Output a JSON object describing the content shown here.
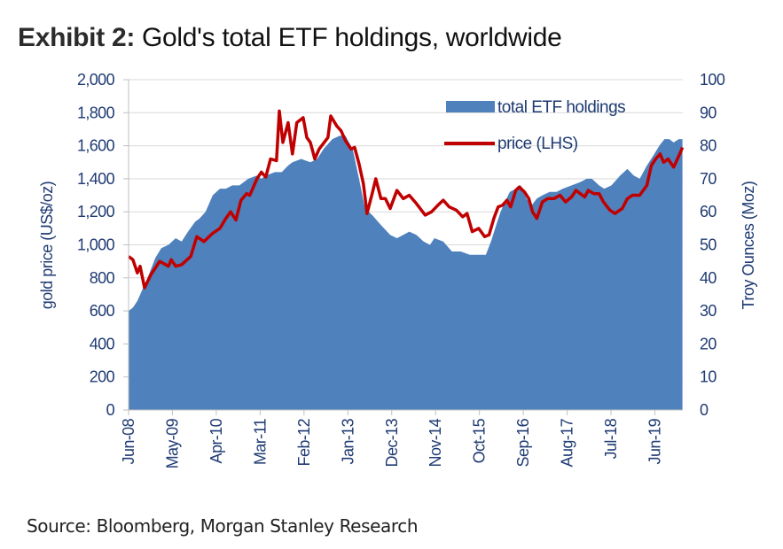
{
  "header": {
    "exhibit_label": "Exhibit 2:",
    "title": "Gold's total ETF holdings, worldwide"
  },
  "footer": {
    "source": "Source: Bloomberg, Morgan Stanley Research"
  },
  "colors": {
    "holdings_fill": "#4f81bd",
    "price_line": "#c00000",
    "axis_text": "#1f3b73",
    "gridline": "#d9d9d9"
  },
  "chart_data": {
    "type": "area",
    "title": "Gold's total ETF holdings, worldwide",
    "xlabel": "",
    "ylabel": "gold price (US$/oz)",
    "y2label": "Troy Ounces (Moz)",
    "ylim": [
      0,
      2000
    ],
    "y2lim": [
      0,
      100
    ],
    "yticks": [
      "0",
      "200",
      "400",
      "600",
      "800",
      "1,000",
      "1,200",
      "1,400",
      "1,600",
      "1,800",
      "2,000"
    ],
    "y2ticks": [
      "0",
      "10",
      "20",
      "30",
      "40",
      "50",
      "60",
      "70",
      "80",
      "90",
      "100"
    ],
    "x_unit": "months since Jun-08",
    "x_range": [
      0,
      139
    ],
    "xticks": [
      {
        "label": "Jun-08",
        "month": 0
      },
      {
        "label": "May-09",
        "month": 11
      },
      {
        "label": "Apr-10",
        "month": 22
      },
      {
        "label": "Mar-11",
        "month": 33
      },
      {
        "label": "Feb-12",
        "month": 44
      },
      {
        "label": "Jan-13",
        "month": 55
      },
      {
        "label": "Dec-13",
        "month": 66
      },
      {
        "label": "Nov-14",
        "month": 77
      },
      {
        "label": "Oct-15",
        "month": 88
      },
      {
        "label": "Sep-16",
        "month": 99
      },
      {
        "label": "Aug-17",
        "month": 110
      },
      {
        "label": "Jul-18",
        "month": 121
      },
      {
        "label": "Jun-19",
        "month": 132
      }
    ],
    "grid": true,
    "legend": {
      "position": "top-right",
      "entries": [
        {
          "label": "total ETF holdings",
          "type": "area"
        },
        {
          "label": "price (LHS)",
          "type": "line"
        }
      ]
    },
    "series": [
      {
        "name": "total ETF holdings",
        "axis": "right",
        "unit": "Moz",
        "type": "area",
        "points": [
          [
            0,
            30
          ],
          [
            1.1,
            31
          ],
          [
            2.2,
            33
          ],
          [
            3.3,
            36
          ],
          [
            5.1,
            41
          ],
          [
            6.7,
            46
          ],
          [
            8.2,
            49
          ],
          [
            10,
            50
          ],
          [
            11.8,
            52
          ],
          [
            13.3,
            51
          ],
          [
            14.9,
            54
          ],
          [
            16.7,
            57
          ],
          [
            17.8,
            58
          ],
          [
            19.3,
            60
          ],
          [
            21.1,
            65
          ],
          [
            22.9,
            67
          ],
          [
            24.4,
            67
          ],
          [
            26,
            68
          ],
          [
            27.8,
            68
          ],
          [
            30,
            70
          ],
          [
            32.2,
            71
          ],
          [
            33.3,
            70
          ],
          [
            34.4,
            71
          ],
          [
            36.7,
            72
          ],
          [
            38.4,
            72
          ],
          [
            40,
            74
          ],
          [
            41.1,
            75
          ],
          [
            43.3,
            76
          ],
          [
            45.6,
            75
          ],
          [
            47.3,
            76
          ],
          [
            48.9,
            79
          ],
          [
            51.1,
            82
          ],
          [
            52.9,
            83
          ],
          [
            54.4,
            83
          ],
          [
            56.2,
            79
          ],
          [
            57.8,
            70
          ],
          [
            59.3,
            61
          ],
          [
            61.1,
            59
          ],
          [
            63.3,
            56
          ],
          [
            65.6,
            53
          ],
          [
            67.3,
            52
          ],
          [
            68.9,
            53
          ],
          [
            70.4,
            54
          ],
          [
            72.2,
            53
          ],
          [
            74,
            51
          ],
          [
            75.6,
            50
          ],
          [
            76.7,
            52
          ],
          [
            78.9,
            51
          ],
          [
            81.1,
            48
          ],
          [
            83.3,
            48
          ],
          [
            85.6,
            47
          ],
          [
            87.8,
            47
          ],
          [
            89.6,
            47
          ],
          [
            90.9,
            51
          ],
          [
            92.2,
            56
          ],
          [
            93.3,
            60
          ],
          [
            94.4,
            63
          ],
          [
            95.6,
            66
          ],
          [
            97.1,
            67
          ],
          [
            98.4,
            68
          ],
          [
            99.8,
            64
          ],
          [
            101.1,
            62
          ],
          [
            102.4,
            64
          ],
          [
            103.8,
            65
          ],
          [
            105.6,
            66
          ],
          [
            107.3,
            66
          ],
          [
            108.9,
            67
          ],
          [
            111.1,
            68
          ],
          [
            113.3,
            69
          ],
          [
            114.9,
            70
          ],
          [
            116.2,
            70
          ],
          [
            118,
            68
          ],
          [
            119.3,
            67
          ],
          [
            121.1,
            68
          ],
          [
            123.3,
            71
          ],
          [
            125.1,
            73
          ],
          [
            126.7,
            71
          ],
          [
            128.2,
            70
          ],
          [
            130,
            74
          ],
          [
            131.6,
            77
          ],
          [
            133.1,
            80
          ],
          [
            134.4,
            82
          ],
          [
            135.6,
            82
          ],
          [
            136.7,
            81
          ],
          [
            138,
            82
          ],
          [
            138.9,
            82
          ]
        ]
      },
      {
        "name": "price (LHS)",
        "axis": "left",
        "unit": "US$/oz",
        "type": "line",
        "points": [
          [
            0,
            930
          ],
          [
            1.1,
            910
          ],
          [
            2.2,
            830
          ],
          [
            2.9,
            870
          ],
          [
            4,
            740
          ],
          [
            5.6,
            820
          ],
          [
            7.8,
            900
          ],
          [
            10,
            870
          ],
          [
            10.7,
            910
          ],
          [
            11.8,
            870
          ],
          [
            13.3,
            880
          ],
          [
            15.6,
            930
          ],
          [
            17.1,
            1050
          ],
          [
            18.9,
            1020
          ],
          [
            21.1,
            1070
          ],
          [
            22.9,
            1100
          ],
          [
            24.4,
            1160
          ],
          [
            25.6,
            1200
          ],
          [
            26.9,
            1150
          ],
          [
            28.2,
            1270
          ],
          [
            29.6,
            1310
          ],
          [
            30.4,
            1300
          ],
          [
            32.2,
            1400
          ],
          [
            33.3,
            1440
          ],
          [
            34.4,
            1410
          ],
          [
            35.6,
            1520
          ],
          [
            37.1,
            1510
          ],
          [
            37.8,
            1810
          ],
          [
            38.7,
            1620
          ],
          [
            40,
            1740
          ],
          [
            41.1,
            1550
          ],
          [
            42.2,
            1740
          ],
          [
            43.8,
            1770
          ],
          [
            44.7,
            1650
          ],
          [
            45.6,
            1620
          ],
          [
            46.7,
            1520
          ],
          [
            47.8,
            1580
          ],
          [
            50,
            1650
          ],
          [
            50.7,
            1780
          ],
          [
            52.2,
            1720
          ],
          [
            53.3,
            1690
          ],
          [
            54.4,
            1630
          ],
          [
            55.8,
            1580
          ],
          [
            56.7,
            1590
          ],
          [
            57.8,
            1490
          ],
          [
            58.9,
            1370
          ],
          [
            59.8,
            1190
          ],
          [
            61.1,
            1310
          ],
          [
            62,
            1400
          ],
          [
            63.3,
            1280
          ],
          [
            64.4,
            1280
          ],
          [
            65.6,
            1220
          ],
          [
            67.3,
            1330
          ],
          [
            68.9,
            1280
          ],
          [
            70.4,
            1300
          ],
          [
            72.2,
            1250
          ],
          [
            74.4,
            1180
          ],
          [
            76,
            1200
          ],
          [
            77.6,
            1240
          ],
          [
            78.9,
            1270
          ],
          [
            80.4,
            1230
          ],
          [
            82.2,
            1210
          ],
          [
            83.8,
            1170
          ],
          [
            84.9,
            1190
          ],
          [
            86.2,
            1080
          ],
          [
            87.8,
            1100
          ],
          [
            89.3,
            1050
          ],
          [
            90.4,
            1060
          ],
          [
            91.6,
            1160
          ],
          [
            92.7,
            1230
          ],
          [
            93.8,
            1240
          ],
          [
            94.9,
            1270
          ],
          [
            95.8,
            1230
          ],
          [
            97.1,
            1330
          ],
          [
            98,
            1350
          ],
          [
            99.3,
            1320
          ],
          [
            100.4,
            1280
          ],
          [
            101.3,
            1200
          ],
          [
            102.4,
            1160
          ],
          [
            103.8,
            1260
          ],
          [
            105.1,
            1280
          ],
          [
            106.7,
            1280
          ],
          [
            108.2,
            1300
          ],
          [
            109.6,
            1260
          ],
          [
            111.1,
            1290
          ],
          [
            112.2,
            1330
          ],
          [
            113.3,
            1310
          ],
          [
            114.4,
            1290
          ],
          [
            115.3,
            1330
          ],
          [
            116.7,
            1310
          ],
          [
            118,
            1310
          ],
          [
            119.1,
            1260
          ],
          [
            120.7,
            1210
          ],
          [
            122,
            1190
          ],
          [
            123.8,
            1220
          ],
          [
            125.1,
            1280
          ],
          [
            126.4,
            1300
          ],
          [
            128.2,
            1300
          ],
          [
            130,
            1360
          ],
          [
            131.1,
            1480
          ],
          [
            132.2,
            1520
          ],
          [
            133.3,
            1550
          ],
          [
            134.2,
            1500
          ],
          [
            135.3,
            1520
          ],
          [
            136.7,
            1470
          ],
          [
            138.4,
            1560
          ],
          [
            138.9,
            1590
          ]
        ]
      }
    ]
  }
}
